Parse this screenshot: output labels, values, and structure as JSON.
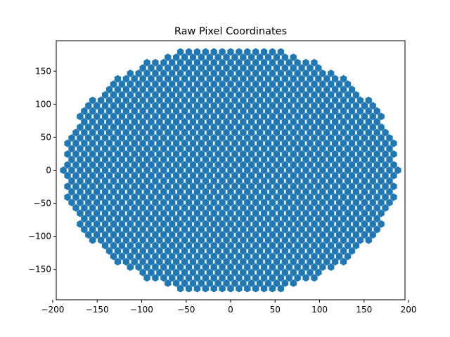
{
  "chart_data": {
    "type": "scatter",
    "title": "Raw Pixel Coordinates",
    "xlabel": "",
    "ylabel": "",
    "xlim": [
      -196,
      196
    ],
    "ylim": [
      -196,
      196
    ],
    "x_ticks": [
      -200,
      -150,
      -100,
      -50,
      0,
      50,
      100,
      150,
      200
    ],
    "x_tick_labels": [
      "−200",
      "−150",
      "−100",
      "−50",
      "0",
      "50",
      "100",
      "150",
      "200"
    ],
    "y_ticks": [
      -150,
      -100,
      -50,
      0,
      50,
      100,
      150
    ],
    "y_tick_labels": [
      "−150",
      "−100",
      "−50",
      "0",
      "50",
      "100",
      "150"
    ],
    "grid": false,
    "marker": "hexagon",
    "color": "#1f77b4",
    "points": {
      "pattern": "hexagonal lattice clipped to a circle",
      "lattice_spacing": 9.4,
      "row_spacing": 8.14,
      "region": {
        "shape": "circle",
        "center": [
          0,
          0
        ],
        "radius": 188,
        "y_extent": [
          -182,
          182
        ]
      }
    }
  }
}
